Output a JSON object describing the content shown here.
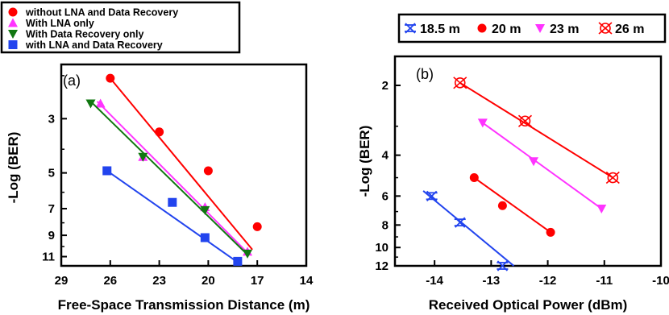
{
  "chart_data": [
    {
      "type": "scatter",
      "panel_label": "(a)",
      "xlabel": "Free-Space Transmission Distance (m)",
      "ylabel": "-Log (BER)",
      "x_reversed": true,
      "y_scale": "log",
      "y_reversed": true,
      "xlim": [
        29,
        14
      ],
      "ylim": [
        1.8,
        12
      ],
      "x_ticks": [
        "29",
        "26",
        "23",
        "20",
        "17",
        "14"
      ],
      "y_ticks": [
        "3",
        "5",
        "7",
        "9",
        "11"
      ],
      "legend_position": "top (outside)",
      "series": [
        {
          "name": "without LNA and Data Recovery",
          "marker": "circle",
          "color": "#ff0000",
          "x": [
            26,
            23,
            20,
            17
          ],
          "y": [
            2.05,
            3.4,
            4.9,
            8.3
          ],
          "fit": {
            "x": [
              26,
              17.3
            ],
            "y": [
              2.05,
              10.3
            ]
          }
        },
        {
          "name": "With LNA only",
          "marker": "triangle-up",
          "color": "#ff33ff",
          "x": [
            26.6,
            24,
            20.2,
            17.6
          ],
          "y": [
            2.6,
            4.3,
            6.9,
            10.5
          ],
          "fit": {
            "x": [
              26.8,
              17.6
            ],
            "y": [
              2.55,
              10.6
            ]
          }
        },
        {
          "name": "With Data Recovery only",
          "marker": "triangle-down",
          "color": "#117711",
          "x": [
            27.2,
            24,
            20.2,
            17.6
          ],
          "y": [
            2.6,
            4.3,
            7.1,
            10.7
          ],
          "fit": {
            "x": [
              27.2,
              17.6
            ],
            "y": [
              2.55,
              10.8
            ]
          }
        },
        {
          "name": "with LNA and Data Recovery",
          "marker": "square",
          "color": "#2244ee",
          "x": [
            26.2,
            22.2,
            20.2,
            18.2
          ],
          "y": [
            4.9,
            6.6,
            9.2,
            11.5
          ],
          "fit": {
            "x": [
              26.2,
              18.2
            ],
            "y": [
              4.9,
              11.6
            ]
          }
        }
      ]
    },
    {
      "type": "scatter",
      "panel_label": "(b)",
      "xlabel": "Received Optical Power (dBm)",
      "ylabel": "-Log (BER)",
      "y_scale": "log",
      "y_reversed": true,
      "xlim": [
        -14.7,
        -10
      ],
      "ylim": [
        1.5,
        12
      ],
      "x_ticks": [
        "-14",
        "-13",
        "-12",
        "-11",
        "-10"
      ],
      "y_ticks": [
        "2",
        "4",
        "6",
        "8",
        "10",
        "12"
      ],
      "legend_position": "top (outside)",
      "series": [
        {
          "name": "18.5 m",
          "marker": "x-box",
          "color": "#2244ee",
          "x": [
            -14.05,
            -13.55,
            -12.8
          ],
          "y": [
            6.0,
            7.8,
            12.0
          ],
          "fit": {
            "x": [
              -14.2,
              -12.6
            ],
            "y": [
              5.7,
              12.0
            ]
          }
        },
        {
          "name": "20 m",
          "marker": "circle",
          "color": "#ff0000",
          "x": [
            -13.3,
            -12.8,
            -11.95
          ],
          "y": [
            5.0,
            6.6,
            8.6
          ],
          "fit": {
            "x": [
              -13.3,
              -11.95
            ],
            "y": [
              5.0,
              8.6
            ]
          }
        },
        {
          "name": "23 m",
          "marker": "triangle-down",
          "color": "#ff33ff",
          "x": [
            -13.15,
            -12.25,
            -11.05
          ],
          "y": [
            2.9,
            4.25,
            6.8
          ],
          "fit": {
            "x": [
              -13.15,
              -11.05
            ],
            "y": [
              2.9,
              6.8
            ]
          }
        },
        {
          "name": "26 m",
          "marker": "x-circle",
          "color": "#ff0000",
          "x": [
            -13.55,
            -12.4,
            -10.85
          ],
          "y": [
            1.95,
            2.85,
            5.0
          ],
          "fit": {
            "x": [
              -13.55,
              -10.85
            ],
            "y": [
              1.95,
              5.0
            ]
          }
        }
      ]
    }
  ]
}
